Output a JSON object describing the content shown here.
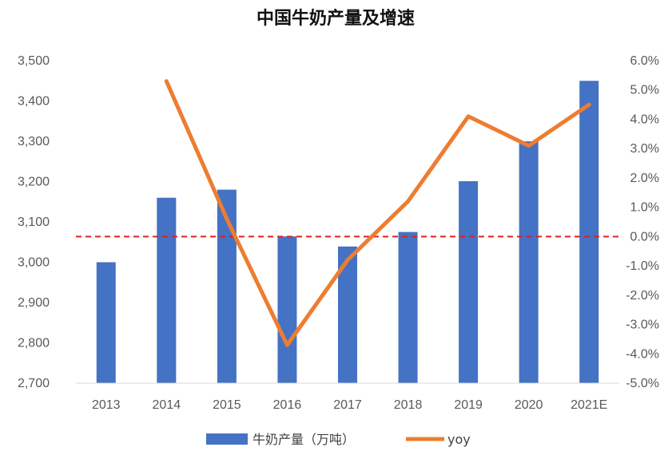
{
  "chart_data": {
    "type": "bar+line",
    "title": "中国牛奶产量及增速",
    "categories": [
      "2013",
      "2014",
      "2015",
      "2016",
      "2017",
      "2018",
      "2019",
      "2020",
      "2021E"
    ],
    "series": [
      {
        "name": "牛奶产量（万吨）",
        "type": "bar",
        "axis": "left",
        "color": "#4472C4",
        "values": [
          3000,
          3160,
          3180,
          3064,
          3039,
          3075,
          3201,
          3300,
          3450
        ]
      },
      {
        "name": "yoy",
        "type": "line",
        "axis": "right",
        "color": "#ED7D31",
        "values": [
          null,
          5.3,
          0.6,
          -3.7,
          -0.8,
          1.2,
          4.1,
          3.1,
          4.5
        ]
      }
    ],
    "y_left": {
      "range": [
        2700,
        3500
      ],
      "ticks": [
        2700,
        2800,
        2900,
        3000,
        3100,
        3200,
        3300,
        3400,
        3500
      ],
      "tick_labels": [
        "2,700",
        "2,800",
        "2,900",
        "3,000",
        "3,100",
        "3,200",
        "3,300",
        "3,400",
        "3,500"
      ]
    },
    "y_right": {
      "range": [
        -5,
        6
      ],
      "ticks": [
        -5,
        -4,
        -3,
        -2,
        -1,
        0,
        1,
        2,
        3,
        4,
        5,
        6
      ],
      "tick_labels": [
        "-5.0%",
        "-4.0%",
        "-3.0%",
        "-2.0%",
        "-1.0%",
        "0.0%",
        "1.0%",
        "2.0%",
        "3.0%",
        "4.0%",
        "5.0%",
        "6.0%"
      ]
    },
    "reference_line": {
      "axis": "right",
      "value": 0,
      "style": "dashed",
      "color": "#E02020"
    },
    "grid": false,
    "legend_position": "bottom"
  }
}
